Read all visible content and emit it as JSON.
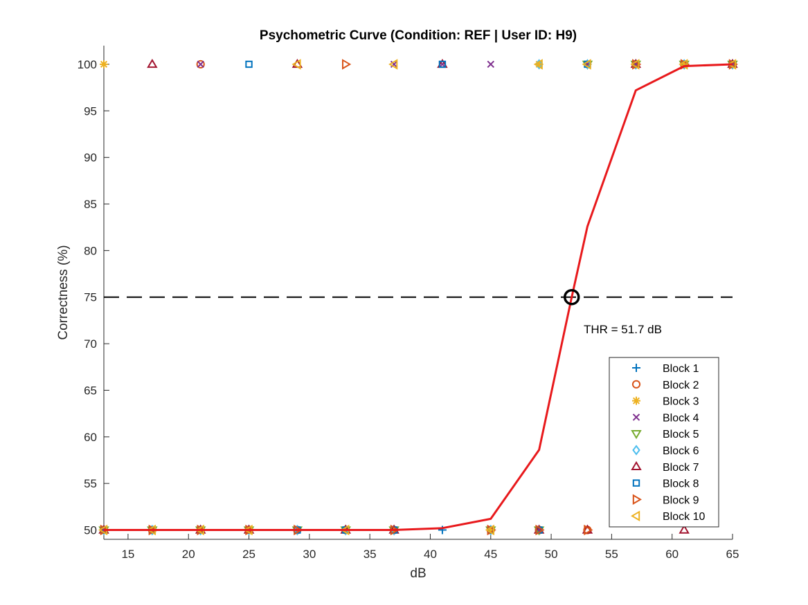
{
  "chart_data": {
    "type": "scatter",
    "title": "Psychometric Curve (Condition: REF | User ID: H9)",
    "xlabel": "dB",
    "ylabel": "Correctness (%)",
    "xlim": [
      13,
      65
    ],
    "ylim": [
      49,
      102
    ],
    "xticks": [
      15,
      20,
      25,
      30,
      35,
      40,
      45,
      50,
      55,
      60,
      65
    ],
    "yticks": [
      50,
      55,
      60,
      65,
      70,
      75,
      80,
      85,
      90,
      95,
      100
    ],
    "grid": false,
    "legend_position": "bottom-right",
    "threshold": {
      "x": 51.7,
      "y": 75,
      "label": "THR = 51.7 dB",
      "line_style": "dashed",
      "color": "#000000"
    },
    "fit_curve": {
      "color": "#e8191c",
      "x": [
        13,
        17,
        21,
        25,
        29,
        33,
        37,
        41,
        45,
        49,
        51.7,
        53,
        57,
        61,
        65
      ],
      "y": [
        50,
        50,
        50,
        50,
        50,
        50,
        50,
        50.2,
        51.2,
        58.6,
        75,
        82.6,
        97.2,
        99.8,
        100
      ]
    },
    "series": [
      {
        "name": "Block 1",
        "marker": "plus",
        "color": "#0072bd",
        "points": [
          [
            13,
            50
          ],
          [
            17,
            50
          ],
          [
            21,
            50
          ],
          [
            25,
            50
          ],
          [
            29,
            50
          ],
          [
            33,
            50
          ],
          [
            37,
            50
          ],
          [
            41,
            50
          ],
          [
            49,
            50
          ],
          [
            53,
            100
          ],
          [
            57,
            100
          ],
          [
            61,
            100
          ],
          [
            65,
            100
          ]
        ]
      },
      {
        "name": "Block 2",
        "marker": "circle",
        "color": "#d95319",
        "points": [
          [
            13,
            50
          ],
          [
            17,
            50
          ],
          [
            21,
            100
          ],
          [
            25,
            50
          ],
          [
            29,
            50
          ],
          [
            33,
            50
          ],
          [
            37,
            50
          ],
          [
            45,
            50
          ],
          [
            49,
            50
          ],
          [
            53,
            50
          ],
          [
            57,
            100
          ],
          [
            61,
            100
          ],
          [
            65,
            100
          ]
        ]
      },
      {
        "name": "Block 3",
        "marker": "asterisk",
        "color": "#edb120",
        "points": [
          [
            13,
            100
          ],
          [
            17,
            50
          ],
          [
            21,
            50
          ],
          [
            25,
            50
          ],
          [
            29,
            50
          ],
          [
            33,
            50
          ],
          [
            37,
            50
          ],
          [
            45,
            50
          ],
          [
            49,
            100
          ],
          [
            53,
            100
          ],
          [
            57,
            100
          ],
          [
            61,
            100
          ],
          [
            65,
            100
          ]
        ]
      },
      {
        "name": "Block 4",
        "marker": "x",
        "color": "#7e2f8e",
        "points": [
          [
            13,
            50
          ],
          [
            17,
            50
          ],
          [
            21,
            100
          ],
          [
            25,
            50
          ],
          [
            29,
            50
          ],
          [
            33,
            50
          ],
          [
            37,
            100
          ],
          [
            41,
            100
          ],
          [
            45,
            100
          ],
          [
            49,
            50
          ],
          [
            53,
            100
          ],
          [
            57,
            100
          ],
          [
            65,
            100
          ]
        ]
      },
      {
        "name": "Block 5",
        "marker": "triangle-down",
        "color": "#77ac30",
        "points": [
          [
            13,
            50
          ],
          [
            17,
            50
          ],
          [
            21,
            50
          ],
          [
            25,
            50
          ],
          [
            29,
            50
          ],
          [
            33,
            50
          ],
          [
            37,
            50
          ],
          [
            45,
            50
          ],
          [
            49,
            50
          ],
          [
            53,
            100
          ],
          [
            57,
            100
          ],
          [
            61,
            100
          ],
          [
            65,
            100
          ]
        ]
      },
      {
        "name": "Block 6",
        "marker": "diamond",
        "color": "#4dbeee",
        "points": [
          [
            13,
            50
          ],
          [
            17,
            50
          ],
          [
            21,
            50
          ],
          [
            25,
            50
          ],
          [
            29,
            50
          ],
          [
            33,
            50
          ],
          [
            37,
            50
          ],
          [
            45,
            50
          ],
          [
            49,
            100
          ],
          [
            53,
            100
          ],
          [
            57,
            100
          ],
          [
            61,
            100
          ],
          [
            65,
            100
          ]
        ]
      },
      {
        "name": "Block 7",
        "marker": "triangle-up",
        "color": "#a2142f",
        "points": [
          [
            13,
            50
          ],
          [
            17,
            100
          ],
          [
            21,
            50
          ],
          [
            25,
            50
          ],
          [
            29,
            100
          ],
          [
            33,
            50
          ],
          [
            37,
            50
          ],
          [
            41,
            100
          ],
          [
            49,
            50
          ],
          [
            53,
            50
          ],
          [
            57,
            100
          ],
          [
            61,
            50
          ],
          [
            65,
            100
          ]
        ]
      },
      {
        "name": "Block 8",
        "marker": "square",
        "color": "#0072bd",
        "points": [
          [
            13,
            50
          ],
          [
            17,
            50
          ],
          [
            21,
            50
          ],
          [
            25,
            100
          ],
          [
            29,
            50
          ],
          [
            33,
            50
          ],
          [
            37,
            50
          ],
          [
            41,
            100
          ],
          [
            45,
            50
          ],
          [
            49,
            50
          ],
          [
            53,
            100
          ],
          [
            57,
            100
          ],
          [
            61,
            100
          ],
          [
            65,
            100
          ]
        ]
      },
      {
        "name": "Block 9",
        "marker": "triangle-right",
        "color": "#d95319",
        "points": [
          [
            13,
            50
          ],
          [
            17,
            50
          ],
          [
            21,
            50
          ],
          [
            25,
            50
          ],
          [
            29,
            50
          ],
          [
            33,
            100
          ],
          [
            37,
            50
          ],
          [
            45,
            50
          ],
          [
            49,
            50
          ],
          [
            53,
            50
          ],
          [
            57,
            100
          ],
          [
            61,
            100
          ],
          [
            65,
            100
          ]
        ]
      },
      {
        "name": "Block 10",
        "marker": "triangle-left",
        "color": "#edb120",
        "points": [
          [
            13,
            50
          ],
          [
            17,
            50
          ],
          [
            21,
            50
          ],
          [
            25,
            50
          ],
          [
            29,
            100
          ],
          [
            33,
            50
          ],
          [
            37,
            100
          ],
          [
            45,
            50
          ],
          [
            49,
            100
          ],
          [
            53,
            100
          ],
          [
            57,
            100
          ],
          [
            61,
            100
          ],
          [
            65,
            100
          ]
        ]
      }
    ]
  }
}
